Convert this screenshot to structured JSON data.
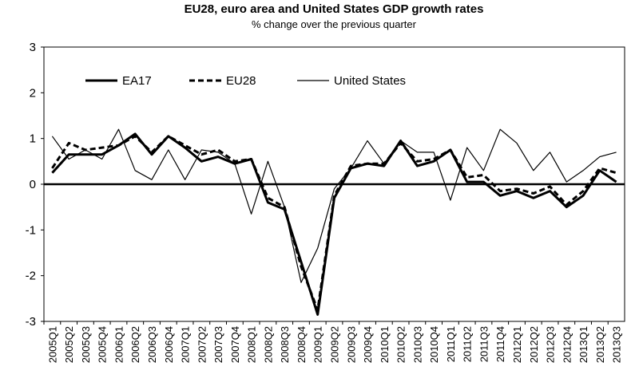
{
  "chart_data": {
    "type": "line",
    "title": "EU28, euro area and United States GDP growth rates",
    "subtitle": "% change over the previous quarter",
    "categories": [
      "2005Q1",
      "2005Q2",
      "2005Q3",
      "2005Q4",
      "2006Q1",
      "2006Q2",
      "2006Q3",
      "2006Q4",
      "2007Q1",
      "2007Q2",
      "2007Q3",
      "2007Q4",
      "2008Q1",
      "2008Q2",
      "2008Q3",
      "2008Q4",
      "2009Q1",
      "2009Q2",
      "2009Q3",
      "2009Q4",
      "2010Q1",
      "2010Q2",
      "2010Q3",
      "2010Q4",
      "2011Q1",
      "2011Q2",
      "2011Q3",
      "2011Q4",
      "2012Q1",
      "2012Q2",
      "2012Q3",
      "2012Q4",
      "2013Q1",
      "2013Q2",
      "2013Q3"
    ],
    "series": [
      {
        "name": "EA17",
        "color": "#000000",
        "width": 3,
        "dash": "solid",
        "values": [
          0.25,
          0.65,
          0.65,
          0.65,
          0.85,
          1.1,
          0.65,
          1.05,
          0.8,
          0.5,
          0.6,
          0.45,
          0.55,
          -0.4,
          -0.55,
          -1.7,
          -2.85,
          -0.3,
          0.35,
          0.45,
          0.4,
          0.95,
          0.4,
          0.5,
          0.75,
          0.05,
          0.05,
          -0.25,
          -0.15,
          -0.3,
          -0.15,
          -0.5,
          -0.25,
          0.3,
          0.05
        ]
      },
      {
        "name": "EU28",
        "color": "#000000",
        "width": 3,
        "dash": "dashed",
        "values": [
          0.35,
          0.9,
          0.75,
          0.8,
          0.85,
          1.05,
          0.7,
          1.05,
          0.85,
          0.65,
          0.75,
          0.5,
          0.55,
          -0.3,
          -0.5,
          -1.8,
          -2.75,
          -0.25,
          0.4,
          0.45,
          0.45,
          0.9,
          0.5,
          0.55,
          0.75,
          0.15,
          0.2,
          -0.15,
          -0.1,
          -0.2,
          -0.05,
          -0.45,
          -0.15,
          0.35,
          0.25
        ]
      },
      {
        "name": "United States",
        "color": "#000000",
        "width": 1.2,
        "dash": "solid",
        "values": [
          1.05,
          0.55,
          0.75,
          0.55,
          1.2,
          0.3,
          0.1,
          0.75,
          0.1,
          0.75,
          0.7,
          0.45,
          -0.65,
          0.5,
          -0.5,
          -2.15,
          -1.4,
          -0.1,
          0.35,
          0.95,
          0.45,
          0.95,
          0.7,
          0.7,
          -0.35,
          0.8,
          0.3,
          1.2,
          0.9,
          0.3,
          0.7,
          0.05,
          0.3,
          0.6,
          0.7
        ]
      }
    ],
    "ylim": [
      -3,
      3
    ],
    "yticks": [
      -3,
      -2,
      -1,
      0,
      1,
      2,
      3
    ],
    "grid": false,
    "legend": "top-left"
  }
}
